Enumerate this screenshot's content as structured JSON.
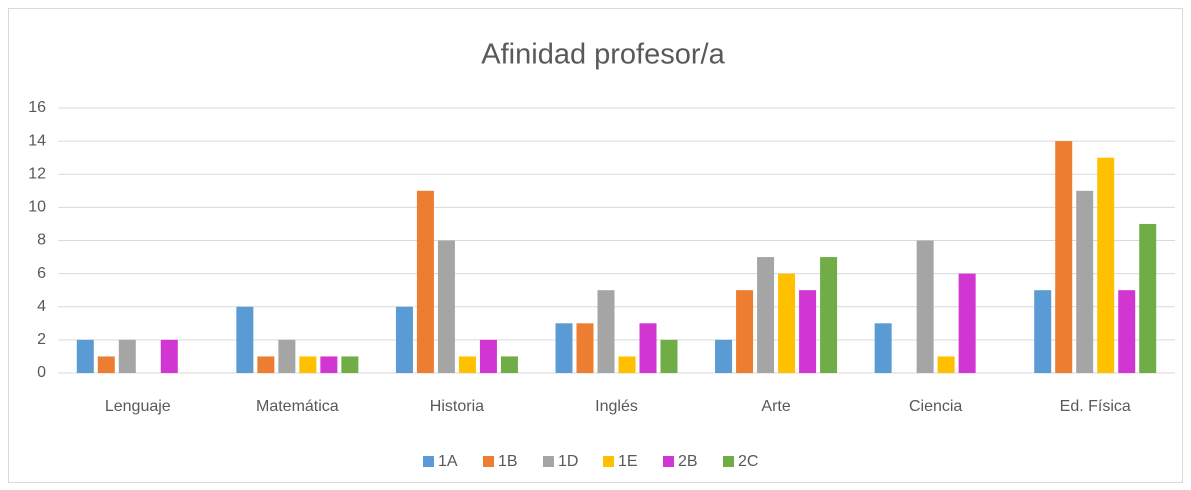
{
  "chart_data": {
    "type": "bar",
    "title": "Afinidad profesor/a",
    "categories": [
      "Lenguaje",
      "Matemática",
      "Historia",
      "Inglés",
      "Arte",
      "Ciencia",
      "Ed. Física"
    ],
    "series": [
      {
        "name": "1A",
        "color": "#5b9bd5",
        "values": [
          2,
          4,
          4,
          3,
          2,
          3,
          5
        ]
      },
      {
        "name": "1B",
        "color": "#ed7d31",
        "values": [
          1,
          1,
          11,
          3,
          5,
          0,
          14
        ]
      },
      {
        "name": "1D",
        "color": "#a5a5a5",
        "values": [
          2,
          2,
          8,
          5,
          7,
          8,
          11
        ]
      },
      {
        "name": "1E",
        "color": "#ffc000",
        "values": [
          0,
          1,
          1,
          1,
          6,
          1,
          13
        ]
      },
      {
        "name": "2B",
        "color": "#d236d2",
        "values": [
          2,
          1,
          2,
          3,
          5,
          6,
          5
        ]
      },
      {
        "name": "2C",
        "color": "#70ad47",
        "values": [
          0,
          1,
          1,
          2,
          7,
          0,
          9
        ]
      }
    ],
    "ylim": [
      0,
      16
    ],
    "yticks": [
      0,
      2,
      4,
      6,
      8,
      10,
      12,
      14,
      16
    ],
    "grid": true,
    "legend": "bottom"
  }
}
